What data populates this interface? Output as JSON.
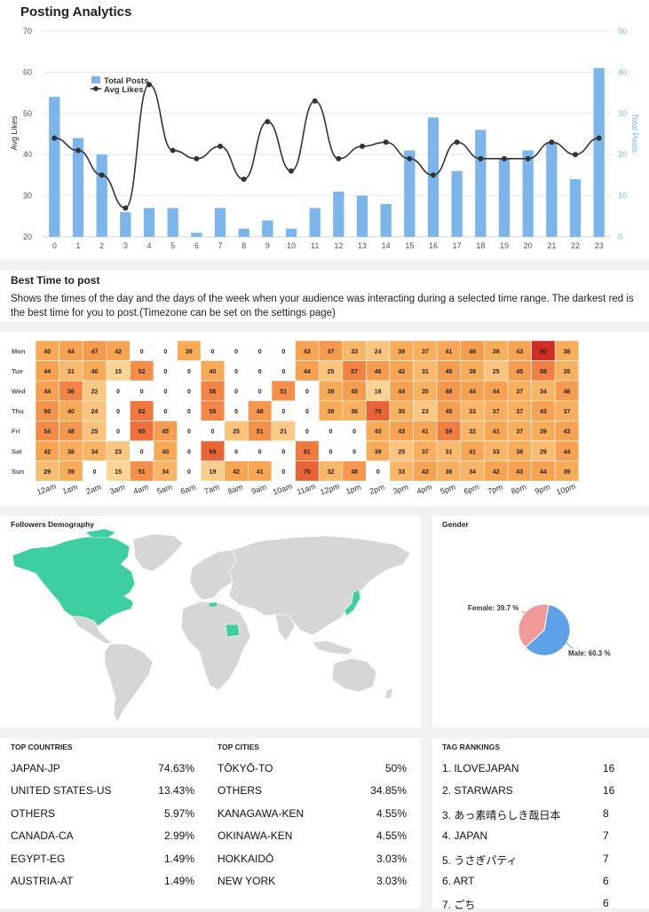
{
  "posting": {
    "title": "Posting Analytics",
    "chart_data": {
      "type": "bar",
      "x": [
        "0",
        "1",
        "2",
        "3",
        "4",
        "5",
        "6",
        "7",
        "8",
        "9",
        "10",
        "11",
        "12",
        "13",
        "14",
        "15",
        "16",
        "17",
        "18",
        "19",
        "20",
        "21",
        "22",
        "23"
      ],
      "series": [
        {
          "name": "Total Posts",
          "type": "bar",
          "axis": "right",
          "color": "#7cb5ec",
          "values": [
            34,
            24,
            20,
            6,
            7,
            7,
            1,
            7,
            2,
            4,
            2,
            7,
            11,
            10,
            8,
            21,
            29,
            16,
            26,
            19,
            21,
            23,
            14,
            41
          ]
        },
        {
          "name": "Avg Likes",
          "type": "line",
          "axis": "left",
          "color": "#333333",
          "values": [
            44,
            41,
            35,
            27,
            57,
            41,
            39,
            42,
            34,
            48,
            36,
            53,
            39,
            42,
            43,
            39,
            35,
            43,
            39,
            39,
            39,
            43,
            40,
            44
          ]
        }
      ],
      "left_axis": {
        "label": "Avg Likes",
        "min": 20,
        "max": 70,
        "ticks": [
          "20",
          "30",
          "40",
          "50",
          "60",
          "70"
        ]
      },
      "right_axis": {
        "label": "Total Posts",
        "min": 0,
        "max": 50,
        "ticks": [
          "0",
          "10",
          "20",
          "30",
          "40",
          "50"
        ]
      },
      "legend": "top-left"
    }
  },
  "best_time": {
    "title": "Best Time to post",
    "description": "Shows the times of the day and the days of the week when your audience was interacting during a selected time range. The darkest red is the best time for you to post.(Timezone can be set on the settings page)"
  },
  "heatmap": {
    "chart_data": {
      "type": "heatmap",
      "rows": [
        "Mon",
        "Tue",
        "Wed",
        "Thu",
        "Fri",
        "Sat",
        "Sun"
      ],
      "columns": [
        "12am",
        "1am",
        "2am",
        "3am",
        "4am",
        "5am",
        "6am",
        "7am",
        "8am",
        "9am",
        "10am",
        "11am",
        "12pm",
        "1pm",
        "2pm",
        "3pm",
        "4pm",
        "5pm",
        "6pm",
        "7pm",
        "8pm",
        "9pm",
        "10pm"
      ],
      "values": [
        [
          40,
          44,
          47,
          42,
          0,
          0,
          39,
          0,
          0,
          0,
          0,
          43,
          47,
          33,
          24,
          39,
          37,
          41,
          46,
          38,
          43,
          90,
          38
        ],
        [
          44,
          31,
          40,
          15,
          52,
          0,
          0,
          40,
          0,
          0,
          0,
          44,
          25,
          57,
          46,
          42,
          31,
          45,
          38,
          25,
          45,
          58,
          35
        ],
        [
          44,
          56,
          22,
          0,
          0,
          0,
          0,
          56,
          0,
          0,
          51,
          0,
          39,
          45,
          16,
          44,
          35,
          48,
          44,
          44,
          37,
          34,
          46
        ],
        [
          50,
          40,
          24,
          0,
          62,
          0,
          0,
          55,
          0,
          48,
          0,
          0,
          39,
          36,
          70,
          35,
          23,
          45,
          33,
          37,
          37,
          43,
          37
        ],
        [
          54,
          48,
          25,
          0,
          65,
          45,
          0,
          0,
          25,
          51,
          21,
          0,
          0,
          0,
          40,
          43,
          41,
          59,
          32,
          41,
          37,
          39,
          43
        ],
        [
          42,
          38,
          34,
          23,
          0,
          40,
          0,
          69,
          0,
          0,
          0,
          61,
          0,
          0,
          39,
          25,
          37,
          31,
          41,
          33,
          38,
          29,
          44
        ],
        [
          29,
          39,
          0,
          15,
          51,
          34,
          0,
          19,
          42,
          41,
          0,
          70,
          32,
          48,
          0,
          33,
          42,
          36,
          34,
          42,
          43,
          44,
          39
        ]
      ]
    }
  },
  "followers": {
    "title": "Followers Demography",
    "highlight_color": "#3ecfa0"
  },
  "gender": {
    "title": "Gender",
    "chart_data": {
      "type": "pie",
      "slices": [
        {
          "name": "Female",
          "value": 39.7,
          "label": "Female: 39.7 %",
          "color": "#f19a9a"
        },
        {
          "name": "Male",
          "value": 60.3,
          "label": "Male: 60.3 %",
          "color": "#5ea1e8"
        }
      ]
    }
  },
  "top_countries": {
    "title": "TOP COUNTRIES",
    "rows": [
      {
        "name": "JAPAN-JP",
        "value": "74.63%"
      },
      {
        "name": "UNITED STATES-US",
        "value": "13.43%"
      },
      {
        "name": "OTHERS",
        "value": "5.97%"
      },
      {
        "name": "CANADA-CA",
        "value": "2.99%"
      },
      {
        "name": "EGYPT-EG",
        "value": "1.49%"
      },
      {
        "name": "AUSTRIA-AT",
        "value": "1.49%"
      }
    ]
  },
  "top_cities": {
    "title": "TOP CITIES",
    "rows": [
      {
        "name": "TŌKYŌ-TO",
        "value": "50%"
      },
      {
        "name": "OTHERS",
        "value": "34.85%"
      },
      {
        "name": "KANAGAWA-KEN",
        "value": "4.55%"
      },
      {
        "name": "OKINAWA-KEN",
        "value": "4.55%"
      },
      {
        "name": "HOKKAIDŌ",
        "value": "3.03%"
      },
      {
        "name": "NEW YORK",
        "value": "3.03%"
      }
    ]
  },
  "tag_rankings": {
    "title": "TAG RANKINGS",
    "rows": [
      {
        "name": "1. ILOVEJAPAN",
        "value": "16"
      },
      {
        "name": "2. STARWARS",
        "value": "16"
      },
      {
        "name": "3. あっ素晴らしき哉日本",
        "value": "8"
      },
      {
        "name": "4. JAPAN",
        "value": "7"
      },
      {
        "name": "5. うさぎパティ",
        "value": "7"
      },
      {
        "name": "6. ART",
        "value": "6"
      },
      {
        "name": "7. ごち",
        "value": "6"
      }
    ]
  }
}
